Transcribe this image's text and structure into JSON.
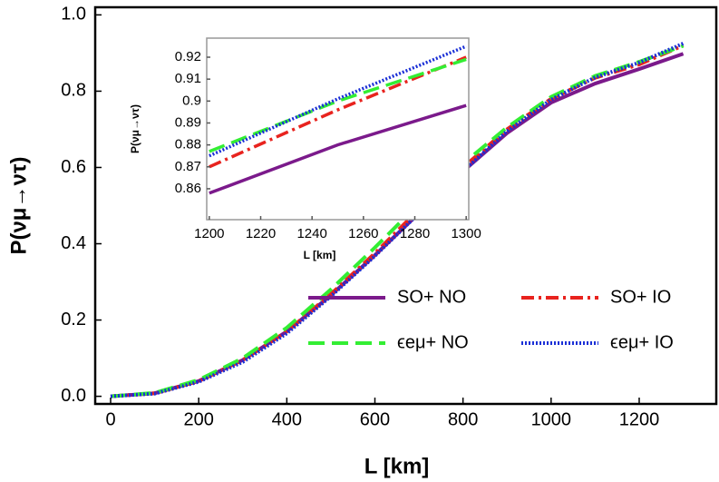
{
  "chart_data": [
    {
      "type": "line",
      "x_label": "L [km]",
      "y_label": "P(νμ→ντ)",
      "x": [
        0,
        100,
        200,
        300,
        400,
        500,
        600,
        700,
        800,
        900,
        1000,
        1100,
        1200,
        1300
      ],
      "series": [
        {
          "name": "SO+ NO",
          "color": "#7b1a8b",
          "dash": "solid",
          "values": [
            0,
            0.008,
            0.04,
            0.095,
            0.17,
            0.265,
            0.37,
            0.48,
            0.59,
            0.69,
            0.77,
            0.82,
            0.858,
            0.898
          ]
        },
        {
          "name": "SO+ IO",
          "color": "#e8231e",
          "dash": "dash-dot",
          "values": [
            0,
            0.008,
            0.04,
            0.095,
            0.17,
            0.268,
            0.375,
            0.49,
            0.6,
            0.7,
            0.78,
            0.835,
            0.87,
            0.92
          ]
        },
        {
          "name": "ϵeμ+ NO",
          "color": "#33ee33",
          "dash": "long-dash",
          "values": [
            0,
            0.009,
            0.043,
            0.1,
            0.18,
            0.28,
            0.39,
            0.505,
            0.61,
            0.705,
            0.785,
            0.84,
            0.877,
            0.919
          ]
        },
        {
          "name": "ϵeμ+ IO",
          "color": "#1a2fd6",
          "dash": "dotted",
          "values": [
            0,
            0.007,
            0.038,
            0.09,
            0.165,
            0.262,
            0.368,
            0.48,
            0.59,
            0.695,
            0.778,
            0.836,
            0.875,
            0.925
          ]
        }
      ],
      "xlim": [
        -35,
        1375
      ],
      "ylim": [
        -0.02,
        1.02
      ],
      "xticks": [
        0,
        200,
        400,
        600,
        800,
        1000,
        1200
      ],
      "yticks": [
        {
          "value": 0,
          "label": "0.0"
        },
        0.2,
        0.4,
        0.6,
        0.8,
        {
          "value": 1,
          "label": "1.0"
        }
      ],
      "legend": "lower right"
    },
    {
      "type": "line",
      "x_label": "L [km]",
      "y_label": "P(νμ→ντ)",
      "x": [
        1200,
        1250,
        1300
      ],
      "series": [
        {
          "color": "#7b1a8b",
          "dash": "solid",
          "values": [
            0.858,
            0.88,
            0.898
          ]
        },
        {
          "color": "#e8231e",
          "dash": "dash-dot",
          "values": [
            0.87,
            0.896,
            0.92
          ]
        },
        {
          "color": "#33ee33",
          "dash": "long-dash",
          "values": [
            0.877,
            0.9,
            0.919
          ]
        },
        {
          "color": "#1a2fd6",
          "dash": "dotted",
          "values": [
            0.875,
            0.901,
            0.925
          ]
        }
      ],
      "xlim": [
        1199,
        1301
      ],
      "ylim": [
        0.8459,
        0.9287
      ],
      "xticks": [
        1200,
        1220,
        1240,
        1260,
        1280,
        1300
      ],
      "yticks": [
        0.86,
        0.87,
        0.88,
        0.89,
        0.9,
        0.91,
        0.92
      ]
    }
  ]
}
